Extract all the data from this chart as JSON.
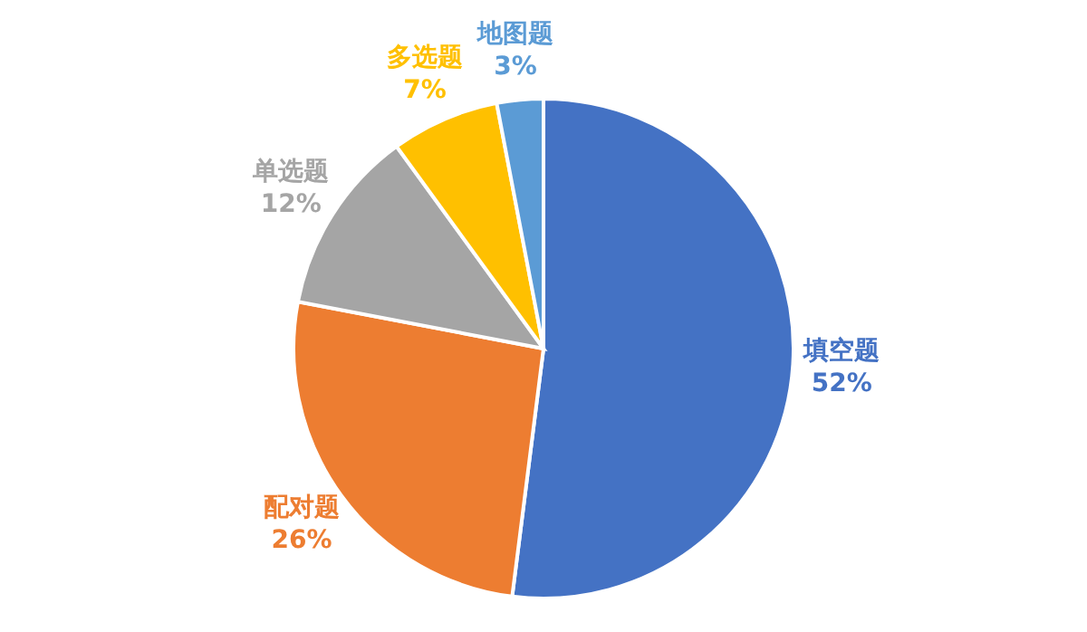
{
  "chart_data": {
    "type": "pie",
    "categories": [
      "填空题",
      "配对题",
      "单选题",
      "多选题",
      "地图题"
    ],
    "values": [
      52,
      26,
      12,
      7,
      3
    ],
    "colors": [
      "#4472c4",
      "#ed7d31",
      "#a5a5a5",
      "#ffc000",
      "#5b9bd5"
    ],
    "value_labels": [
      "52%",
      "26%",
      "12%",
      "7%",
      "3%"
    ],
    "legend": false
  }
}
